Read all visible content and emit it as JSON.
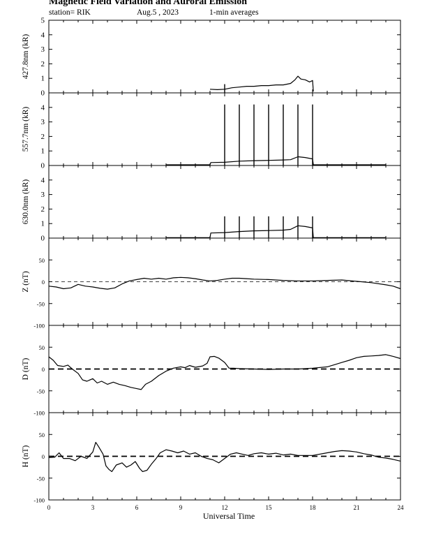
{
  "header": {
    "title": "Magnetic Field Variation and Auroral Emission",
    "station": "station= RIK",
    "date": "Aug.5  , 2023",
    "averaging": "1-min averages"
  },
  "chart_data": [
    {
      "type": "line",
      "ylabel": "427.8nm (kR)",
      "ylim": [
        0,
        5
      ],
      "yticks": [
        0,
        1,
        2,
        3,
        4,
        5
      ],
      "xlim": [
        0,
        24
      ],
      "series": [
        {
          "points": [
            [
              11.0,
              0.25
            ],
            [
              11.5,
              0.22
            ],
            [
              12.0,
              0.25
            ],
            [
              12.5,
              0.35
            ],
            [
              13.0,
              0.4
            ],
            [
              13.5,
              0.45
            ],
            [
              14.0,
              0.45
            ],
            [
              14.5,
              0.5
            ],
            [
              15.0,
              0.5
            ],
            [
              15.5,
              0.55
            ],
            [
              16.0,
              0.55
            ],
            [
              16.5,
              0.65
            ],
            [
              16.8,
              0.9
            ],
            [
              17.0,
              1.15
            ],
            [
              17.2,
              0.95
            ],
            [
              17.5,
              0.9
            ],
            [
              17.8,
              0.75
            ],
            [
              18.0,
              0.85
            ],
            [
              18.05,
              0.1
            ]
          ]
        }
      ],
      "spikes": [
        {
          "x": 12.0,
          "y": 0.6
        }
      ]
    },
    {
      "type": "line",
      "ylabel": "557.7nm (kR)",
      "ylim": [
        0,
        5
      ],
      "yticks": [
        0,
        1,
        2,
        3,
        4
      ],
      "xlim": [
        0,
        24
      ],
      "series": [
        {
          "points": [
            [
              8.0,
              0.05
            ],
            [
              11.0,
              0.05
            ],
            [
              11.05,
              0.2
            ],
            [
              12.0,
              0.22
            ],
            [
              13.0,
              0.3
            ],
            [
              14.0,
              0.33
            ],
            [
              15.0,
              0.35
            ],
            [
              16.0,
              0.38
            ],
            [
              16.5,
              0.4
            ],
            [
              17.0,
              0.6
            ],
            [
              17.5,
              0.55
            ],
            [
              18.0,
              0.45
            ],
            [
              18.05,
              0.05
            ],
            [
              23.0,
              0.05
            ]
          ]
        }
      ],
      "spikes": [
        {
          "x": 12.0,
          "y": 4.2
        },
        {
          "x": 13.0,
          "y": 4.2
        },
        {
          "x": 14.0,
          "y": 4.2
        },
        {
          "x": 15.0,
          "y": 4.2
        },
        {
          "x": 16.0,
          "y": 4.2
        },
        {
          "x": 17.0,
          "y": 4.2
        },
        {
          "x": 18.0,
          "y": 4.2
        }
      ]
    },
    {
      "type": "line",
      "ylabel": "630.0nm (kR)",
      "ylim": [
        0,
        5
      ],
      "yticks": [
        0,
        1,
        2,
        3,
        4
      ],
      "xlim": [
        0,
        24
      ],
      "series": [
        {
          "points": [
            [
              8.0,
              0.03
            ],
            [
              11.0,
              0.03
            ],
            [
              11.05,
              0.35
            ],
            [
              12.0,
              0.38
            ],
            [
              13.0,
              0.45
            ],
            [
              14.0,
              0.5
            ],
            [
              15.0,
              0.52
            ],
            [
              16.0,
              0.55
            ],
            [
              16.5,
              0.6
            ],
            [
              17.0,
              0.85
            ],
            [
              17.5,
              0.8
            ],
            [
              18.0,
              0.7
            ],
            [
              18.05,
              0.03
            ],
            [
              23.0,
              0.03
            ]
          ]
        }
      ],
      "spikes": [
        {
          "x": 12.0,
          "y": 1.5
        },
        {
          "x": 13.0,
          "y": 1.5
        },
        {
          "x": 14.0,
          "y": 1.5
        },
        {
          "x": 15.0,
          "y": 1.5
        },
        {
          "x": 16.0,
          "y": 1.5
        },
        {
          "x": 17.0,
          "y": 1.5
        },
        {
          "x": 18.0,
          "y": 1.5
        }
      ]
    },
    {
      "type": "line",
      "ylabel": "Z (nT)",
      "ylim": [
        -100,
        100
      ],
      "yticks": [
        -100,
        -50,
        0,
        50
      ],
      "zero_line": "dashed-thin",
      "xlim": [
        0,
        24
      ],
      "series": [
        {
          "points": [
            [
              0,
              -10
            ],
            [
              0.5,
              -12
            ],
            [
              1.0,
              -16
            ],
            [
              1.5,
              -14
            ],
            [
              2.0,
              -6
            ],
            [
              2.5,
              -10
            ],
            [
              3.0,
              -12
            ],
            [
              3.5,
              -15
            ],
            [
              4.0,
              -17
            ],
            [
              4.5,
              -14
            ],
            [
              5.0,
              -5
            ],
            [
              5.5,
              2
            ],
            [
              6.0,
              5
            ],
            [
              6.5,
              8
            ],
            [
              7.0,
              6
            ],
            [
              7.5,
              8
            ],
            [
              8.0,
              6
            ],
            [
              8.5,
              9
            ],
            [
              9.0,
              10
            ],
            [
              9.5,
              9
            ],
            [
              10.0,
              7
            ],
            [
              10.5,
              4
            ],
            [
              11.0,
              2
            ],
            [
              11.5,
              3
            ],
            [
              12.0,
              6
            ],
            [
              12.5,
              8
            ],
            [
              13.0,
              8
            ],
            [
              13.5,
              7
            ],
            [
              14.0,
              6
            ],
            [
              15.0,
              5
            ],
            [
              16.0,
              3
            ],
            [
              17.0,
              2
            ],
            [
              18.0,
              2
            ],
            [
              19.0,
              3
            ],
            [
              20.0,
              4
            ],
            [
              21.0,
              1
            ],
            [
              22.0,
              -2
            ],
            [
              23.0,
              -7
            ],
            [
              23.5,
              -10
            ],
            [
              24.0,
              -16
            ]
          ]
        }
      ]
    },
    {
      "type": "line",
      "ylabel": "D (nT)",
      "ylim": [
        -100,
        100
      ],
      "yticks": [
        -100,
        -50,
        0,
        50
      ],
      "zero_line": "dashed-thick",
      "xlim": [
        0,
        24
      ],
      "series": [
        {
          "points": [
            [
              0,
              28
            ],
            [
              0.3,
              20
            ],
            [
              0.6,
              8
            ],
            [
              1.0,
              6
            ],
            [
              1.3,
              9
            ],
            [
              1.6,
              0
            ],
            [
              2.0,
              -10
            ],
            [
              2.3,
              -25
            ],
            [
              2.6,
              -28
            ],
            [
              3.0,
              -22
            ],
            [
              3.3,
              -32
            ],
            [
              3.6,
              -28
            ],
            [
              4.0,
              -35
            ],
            [
              4.4,
              -30
            ],
            [
              4.8,
              -35
            ],
            [
              5.2,
              -38
            ],
            [
              5.6,
              -42
            ],
            [
              6.0,
              -45
            ],
            [
              6.3,
              -47
            ],
            [
              6.6,
              -35
            ],
            [
              7.0,
              -28
            ],
            [
              7.5,
              -15
            ],
            [
              8.0,
              -5
            ],
            [
              8.5,
              2
            ],
            [
              9.0,
              5
            ],
            [
              9.3,
              3
            ],
            [
              9.6,
              8
            ],
            [
              10.0,
              4
            ],
            [
              10.5,
              7
            ],
            [
              10.8,
              13
            ],
            [
              11.0,
              28
            ],
            [
              11.3,
              29
            ],
            [
              11.6,
              25
            ],
            [
              12.0,
              15
            ],
            [
              12.3,
              2
            ],
            [
              12.6,
              2
            ],
            [
              13.0,
              1
            ],
            [
              14.0,
              0
            ],
            [
              15.0,
              -1
            ],
            [
              16.0,
              0
            ],
            [
              17.0,
              0
            ],
            [
              18.0,
              2
            ],
            [
              19.0,
              5
            ],
            [
              19.5,
              10
            ],
            [
              20.0,
              15
            ],
            [
              20.5,
              20
            ],
            [
              21.0,
              26
            ],
            [
              21.5,
              29
            ],
            [
              22.0,
              30
            ],
            [
              22.5,
              31
            ],
            [
              23.0,
              33
            ],
            [
              23.5,
              29
            ],
            [
              24.0,
              24
            ]
          ]
        }
      ]
    },
    {
      "type": "line",
      "ylabel": "H (nT)",
      "ylim": [
        -100,
        100
      ],
      "yticks": [
        -100,
        -50,
        0,
        50
      ],
      "zero_line": "dashed-thick",
      "xlim": [
        0,
        24
      ],
      "series": [
        {
          "points": [
            [
              0,
              -3
            ],
            [
              0.4,
              -2
            ],
            [
              0.7,
              8
            ],
            [
              1.0,
              -5
            ],
            [
              1.4,
              -5
            ],
            [
              1.8,
              -10
            ],
            [
              2.2,
              0
            ],
            [
              2.6,
              -5
            ],
            [
              3.0,
              10
            ],
            [
              3.2,
              32
            ],
            [
              3.4,
              22
            ],
            [
              3.7,
              5
            ],
            [
              3.9,
              -22
            ],
            [
              4.1,
              -30
            ],
            [
              4.3,
              -35
            ],
            [
              4.6,
              -20
            ],
            [
              5.0,
              -15
            ],
            [
              5.3,
              -25
            ],
            [
              5.6,
              -20
            ],
            [
              5.9,
              -12
            ],
            [
              6.2,
              -28
            ],
            [
              6.4,
              -35
            ],
            [
              6.7,
              -32
            ],
            [
              7.0,
              -18
            ],
            [
              7.3,
              -6
            ],
            [
              7.6,
              8
            ],
            [
              8.0,
              15
            ],
            [
              8.4,
              12
            ],
            [
              8.8,
              8
            ],
            [
              9.2,
              12
            ],
            [
              9.6,
              5
            ],
            [
              10.0,
              8
            ],
            [
              10.4,
              0
            ],
            [
              10.8,
              -5
            ],
            [
              11.2,
              -8
            ],
            [
              11.6,
              -15
            ],
            [
              12.0,
              -5
            ],
            [
              12.4,
              5
            ],
            [
              12.8,
              8
            ],
            [
              13.2,
              5
            ],
            [
              13.6,
              2
            ],
            [
              14.0,
              6
            ],
            [
              14.5,
              8
            ],
            [
              15.0,
              5
            ],
            [
              15.5,
              7
            ],
            [
              16.0,
              3
            ],
            [
              16.5,
              5
            ],
            [
              17.0,
              2
            ],
            [
              18.0,
              2
            ],
            [
              19.0,
              8
            ],
            [
              19.5,
              11
            ],
            [
              20.0,
              13
            ],
            [
              20.5,
              12
            ],
            [
              21.0,
              10
            ],
            [
              21.5,
              6
            ],
            [
              22.0,
              3
            ],
            [
              22.5,
              -2
            ],
            [
              23.0,
              -4
            ],
            [
              23.5,
              -7
            ],
            [
              24.0,
              -11
            ]
          ]
        }
      ]
    }
  ],
  "x_axis": {
    "xlim": [
      0,
      24
    ],
    "ticks": [
      0,
      3,
      6,
      9,
      12,
      15,
      18,
      21,
      24
    ],
    "xlabel": "Universal Time"
  }
}
